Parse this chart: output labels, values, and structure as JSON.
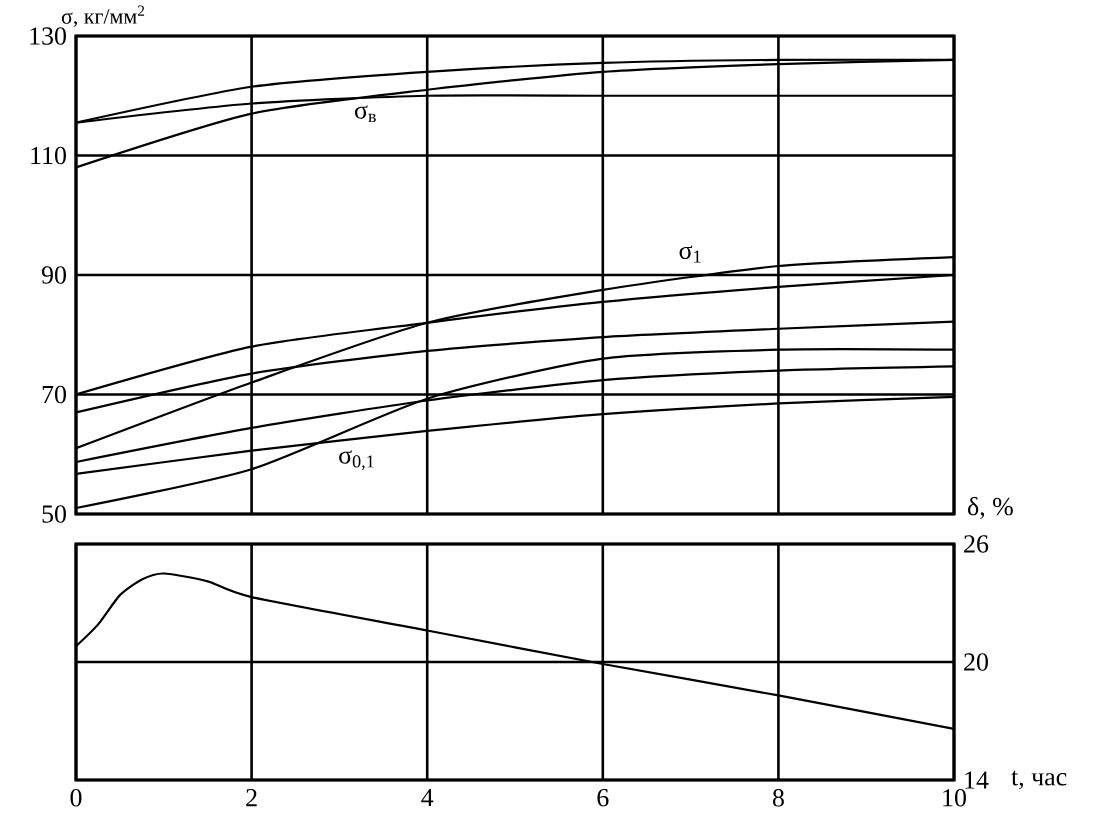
{
  "chart_data": [
    {
      "type": "line",
      "ylabel": "σ, кг/мм$^{2}$",
      "x": [
        0,
        2,
        4,
        6,
        8,
        10
      ],
      "xlim": [
        0,
        10
      ],
      "xticks": [
        0,
        2,
        4,
        6,
        8,
        10
      ],
      "ylim": [
        50,
        130
      ],
      "yticks": [
        50,
        70,
        90,
        110,
        130
      ],
      "grid": true,
      "tick_labels": "y",
      "series": [
        {
          "color": "#000000",
          "values": [
            115.5,
            121.5,
            124,
            125.5,
            126,
            126
          ]
        },
        {
          "color": "#000000",
          "values": [
            108,
            117,
            121,
            124,
            125.3,
            126
          ]
        },
        {
          "color": "#000000",
          "values": [
            115.5,
            118.7,
            120,
            120,
            120,
            120
          ]
        },
        {
          "color": "#000000",
          "values": [
            61,
            72,
            82,
            87.5,
            91.5,
            93
          ]
        },
        {
          "color": "#000000",
          "values": [
            70,
            78,
            82,
            85.5,
            88,
            90
          ]
        },
        {
          "color": "#000000",
          "values": [
            67,
            73.5,
            77.3,
            79.6,
            81,
            82.2
          ]
        },
        {
          "color": "#000000",
          "values": [
            51,
            57.5,
            69.3,
            76,
            77.5,
            77.5
          ]
        },
        {
          "color": "#000000",
          "values": [
            58.7,
            64.4,
            69,
            72.4,
            74,
            74.7
          ]
        },
        {
          "color": "#000000",
          "values": [
            56.7,
            60.6,
            63.9,
            66.7,
            68.5,
            69.6
          ]
        }
      ],
      "annotations": [
        {
          "text": "σ$_{в}$",
          "x": 3.3,
          "y": 117
        },
        {
          "text": "σ$_{1}$",
          "x": 7.0,
          "y": 93.5
        },
        {
          "text": "σ$_{0,1}$",
          "x": 3.2,
          "y": 59
        }
      ]
    },
    {
      "type": "line",
      "xlabel": "t, час",
      "y2label": "δ, %",
      "xlim": [
        0,
        10
      ],
      "xticks": [
        0,
        2,
        4,
        6,
        8,
        10
      ],
      "y2lim": [
        14,
        26
      ],
      "y2ticks": [
        14,
        20,
        26
      ],
      "grid": true,
      "series": [
        {
          "color": "#000000",
          "axis": "y2",
          "x": [
            0,
            0.25,
            0.5,
            0.75,
            1,
            1.5,
            2,
            4,
            6,
            8,
            10
          ],
          "values": [
            20.8,
            21.9,
            23.4,
            24.2,
            24.5,
            24.1,
            23.3,
            21.6,
            19.9,
            18.3,
            16.6
          ]
        }
      ]
    }
  ]
}
